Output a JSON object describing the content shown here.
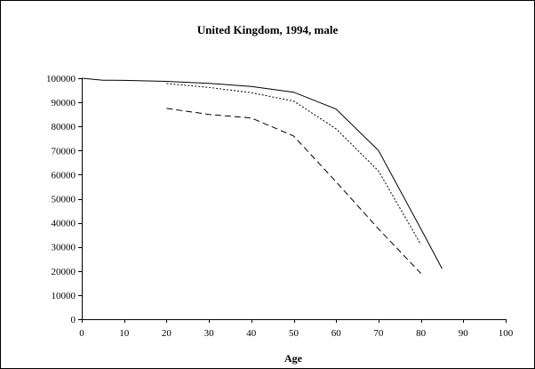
{
  "chart_data": {
    "type": "line",
    "title": "United Kingdom, 1994, male",
    "xlabel": "Age",
    "ylabel": "",
    "xlim": [
      0,
      100
    ],
    "ylim": [
      0,
      100000
    ],
    "x_ticks": [
      0,
      10,
      20,
      30,
      40,
      50,
      60,
      70,
      80,
      90,
      100
    ],
    "y_ticks": [
      0,
      10000,
      20000,
      30000,
      40000,
      50000,
      60000,
      70000,
      80000,
      90000,
      100000
    ],
    "grid": false,
    "legend": "none",
    "series": [
      {
        "line_style": "solid",
        "color": "#000000",
        "x": [
          0,
          5,
          10,
          20,
          30,
          40,
          50,
          60,
          70,
          80,
          85
        ],
        "y": [
          100000,
          99200,
          99100,
          98700,
          97900,
          96600,
          94200,
          87200,
          70000,
          37500,
          21000
        ]
      },
      {
        "line_style": "dotted",
        "color": "#000000",
        "x": [
          20,
          30,
          40,
          50,
          60,
          70,
          80
        ],
        "y": [
          97800,
          96200,
          94000,
          90500,
          79000,
          61500,
          31000
        ]
      },
      {
        "line_style": "dashed",
        "color": "#000000",
        "x": [
          20,
          30,
          40,
          50,
          60,
          70,
          80
        ],
        "y": [
          87500,
          85000,
          83500,
          76000,
          57000,
          37500,
          19000
        ]
      }
    ]
  }
}
